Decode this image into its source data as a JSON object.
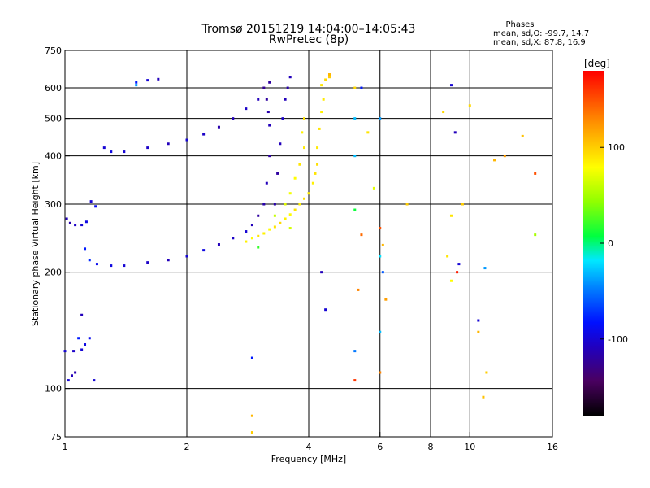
{
  "header": {
    "title": "Tromsø 20151219 14:04:00–14:05:43",
    "subtitle": "RwPretec (8p)"
  },
  "stats": {
    "heading": "Phases",
    "line_o": "mean, sd,O: -99.7, 14.7",
    "line_x": "mean, sd,X:  87.8, 16.9"
  },
  "colorbar": {
    "unit_label": "[deg]",
    "min": -180,
    "max": 180,
    "ticks": [
      {
        "value": 100,
        "label": "100"
      },
      {
        "value": 0,
        "label": "0"
      },
      {
        "value": -100,
        "label": "-100"
      }
    ]
  },
  "chart_data": {
    "type": "scatter",
    "title": "Tromsø 20151219 14:04:00–14:05:43",
    "subtitle": "RwPretec (8p)",
    "xlabel": "Frequency [MHz]",
    "ylabel": "Stationary phase Virtual Height [km]",
    "x_scale": "log",
    "y_scale": "log",
    "xlim": [
      1,
      16
    ],
    "ylim": [
      75,
      750
    ],
    "x_ticks": [
      1,
      2,
      4,
      6,
      8,
      10,
      16
    ],
    "y_ticks": [
      75,
      100,
      200,
      300,
      400,
      500,
      600,
      750
    ],
    "x_gridlines": [
      2,
      4,
      6,
      8,
      10
    ],
    "y_gridlines": [
      100,
      200,
      300,
      400,
      500,
      600
    ],
    "colorbar_label": "[deg]",
    "colorbar_range": [
      -180,
      180
    ],
    "series": [
      {
        "points": [
          [
            1.01,
            275,
            -110
          ],
          [
            1.03,
            268,
            -115
          ],
          [
            1.06,
            265,
            -105
          ],
          [
            1.1,
            265,
            -100
          ],
          [
            1.13,
            270,
            -95
          ],
          [
            1.16,
            305,
            -100
          ],
          [
            1.19,
            296,
            -90
          ],
          [
            1.12,
            230,
            -80
          ],
          [
            1.15,
            215,
            -75
          ],
          [
            1.2,
            210,
            -90
          ],
          [
            1.3,
            208,
            -95
          ],
          [
            1.4,
            208,
            -100
          ],
          [
            1.6,
            212,
            -105
          ],
          [
            1.8,
            215,
            -110
          ],
          [
            2.0,
            220,
            -100
          ],
          [
            2.2,
            228,
            -95
          ],
          [
            2.4,
            236,
            -110
          ],
          [
            2.6,
            245,
            -105
          ],
          [
            2.8,
            255,
            -100
          ],
          [
            2.9,
            265,
            -110
          ],
          [
            3.0,
            280,
            -120
          ],
          [
            3.1,
            300,
            -115
          ],
          [
            3.15,
            340,
            -110
          ],
          [
            3.2,
            400,
            -120
          ],
          [
            3.2,
            480,
            -110
          ],
          [
            3.18,
            520,
            -115
          ],
          [
            3.15,
            560,
            -120
          ],
          [
            3.1,
            600,
            -125
          ],
          [
            3.0,
            560,
            -110
          ],
          [
            2.8,
            530,
            -105
          ],
          [
            2.6,
            500,
            -110
          ],
          [
            2.4,
            475,
            -115
          ],
          [
            2.2,
            455,
            -105
          ],
          [
            2.0,
            440,
            -100
          ],
          [
            1.8,
            430,
            -110
          ],
          [
            1.6,
            420,
            -105
          ],
          [
            1.4,
            410,
            -100
          ],
          [
            1.3,
            410,
            -95
          ],
          [
            1.25,
            420,
            -100
          ],
          [
            1.5,
            620,
            -80
          ],
          [
            1.6,
            628,
            -100
          ],
          [
            1.7,
            632,
            -110
          ],
          [
            1.5,
            610,
            -40
          ],
          [
            3.3,
            300,
            -115
          ],
          [
            3.35,
            360,
            -120
          ],
          [
            3.4,
            430,
            -110
          ],
          [
            3.45,
            500,
            -105
          ],
          [
            3.5,
            560,
            -110
          ],
          [
            3.55,
            600,
            -115
          ],
          [
            3.6,
            640,
            -110
          ],
          [
            3.2,
            620,
            -120
          ],
          [
            1.0,
            125,
            -100
          ],
          [
            1.05,
            125,
            -105
          ],
          [
            1.1,
            126,
            -100
          ],
          [
            1.12,
            130,
            -95
          ],
          [
            1.1,
            155,
            -110
          ],
          [
            1.08,
            135,
            -80
          ],
          [
            1.02,
            105,
            -100
          ],
          [
            1.04,
            108,
            -110
          ],
          [
            1.06,
            110,
            -115
          ],
          [
            1.15,
            135,
            -90
          ],
          [
            1.18,
            105,
            -100
          ],
          [
            2.9,
            120,
            -80
          ],
          [
            4.3,
            200,
            -110
          ],
          [
            4.4,
            160,
            -100
          ],
          [
            5.2,
            125,
            -50
          ],
          [
            5.2,
            400,
            -30
          ],
          [
            5.2,
            290,
            10
          ],
          [
            6.0,
            220,
            -20
          ],
          [
            6.1,
            200,
            -60
          ],
          [
            6.0,
            140,
            -30
          ],
          [
            9.2,
            460,
            -110
          ],
          [
            9.4,
            210,
            -100
          ],
          [
            10.5,
            150,
            -100
          ],
          [
            10.9,
            205,
            -40
          ],
          [
            6.0,
            500,
            -40
          ],
          [
            5.2,
            500,
            -30
          ],
          [
            5.4,
            600,
            -80
          ],
          [
            9.0,
            610,
            -100
          ],
          [
            2.8,
            240,
            85
          ],
          [
            2.9,
            245,
            80
          ],
          [
            3.0,
            248,
            90
          ],
          [
            3.1,
            252,
            85
          ],
          [
            3.2,
            258,
            80
          ],
          [
            3.3,
            262,
            90
          ],
          [
            3.4,
            268,
            95
          ],
          [
            3.5,
            275,
            85
          ],
          [
            3.6,
            282,
            80
          ],
          [
            3.7,
            290,
            90
          ],
          [
            3.8,
            300,
            85
          ],
          [
            3.9,
            310,
            92
          ],
          [
            4.0,
            320,
            88
          ],
          [
            4.1,
            340,
            85
          ],
          [
            4.15,
            360,
            90
          ],
          [
            4.2,
            380,
            92
          ],
          [
            4.2,
            420,
            88
          ],
          [
            4.25,
            470,
            90
          ],
          [
            4.3,
            520,
            85
          ],
          [
            4.35,
            560,
            88
          ],
          [
            4.3,
            610,
            90
          ],
          [
            4.4,
            630,
            95
          ],
          [
            4.5,
            640,
            100
          ],
          [
            3.8,
            380,
            90
          ],
          [
            3.9,
            420,
            88
          ],
          [
            3.85,
            460,
            85
          ],
          [
            3.9,
            500,
            90
          ],
          [
            3.7,
            350,
            80
          ],
          [
            3.6,
            320,
            75
          ],
          [
            3.5,
            300,
            70
          ],
          [
            3.3,
            280,
            60
          ],
          [
            3.6,
            260,
            65
          ],
          [
            3.0,
            232,
            20
          ],
          [
            5.2,
            600,
            95
          ],
          [
            5.3,
            180,
            130
          ],
          [
            5.2,
            105,
            160
          ],
          [
            5.6,
            460,
            90
          ],
          [
            5.8,
            330,
            70
          ],
          [
            6.1,
            235,
            110
          ],
          [
            6.2,
            170,
            120
          ],
          [
            6.0,
            110,
            130
          ],
          [
            7.0,
            300,
            100
          ],
          [
            8.6,
            520,
            95
          ],
          [
            8.8,
            220,
            90
          ],
          [
            9.0,
            190,
            80
          ],
          [
            9.6,
            300,
            100
          ],
          [
            10.0,
            540,
            95
          ],
          [
            10.5,
            140,
            110
          ],
          [
            11.0,
            110,
            100
          ],
          [
            11.5,
            390,
            110
          ],
          [
            12.2,
            400,
            120
          ],
          [
            13.5,
            450,
            105
          ],
          [
            14.5,
            360,
            150
          ],
          [
            14.5,
            250,
            50
          ],
          [
            2.9,
            85,
            110
          ],
          [
            2.9,
            77,
            100
          ],
          [
            9.0,
            280,
            90
          ],
          [
            10.8,
            95,
            105
          ],
          [
            4.5,
            650,
            110
          ],
          [
            5.4,
            250,
            140
          ],
          [
            6.0,
            260,
            150
          ],
          [
            9.3,
            200,
            170
          ]
        ]
      }
    ]
  }
}
